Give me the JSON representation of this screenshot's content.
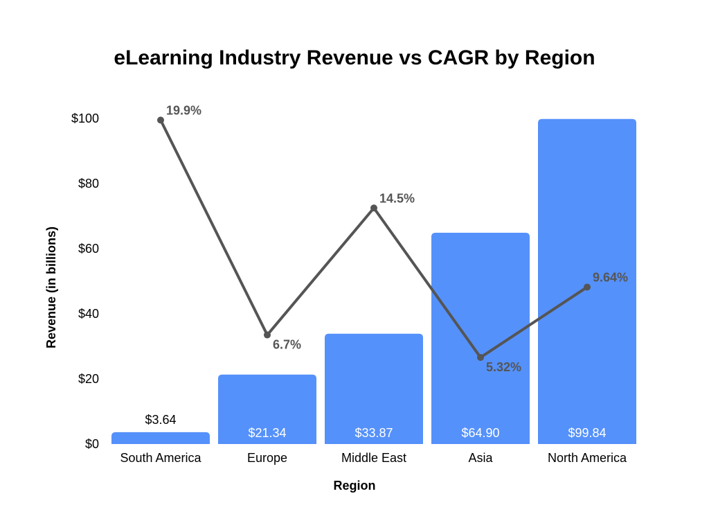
{
  "chart_data": {
    "type": "bar",
    "title": "eLearning Industry Revenue vs CAGR by Region",
    "xlabel": "Region",
    "ylabel": "Revenue (in billions)",
    "ylim": [
      0,
      100
    ],
    "yticks": [
      "$0",
      "$20",
      "$40",
      "$60",
      "$80",
      "$100"
    ],
    "ytick_values": [
      0,
      20,
      40,
      60,
      80,
      100
    ],
    "grid": false,
    "categories": [
      "South America",
      "Europe",
      "Middle East",
      "Asia",
      "North America"
    ],
    "series": [
      {
        "name": "Revenue",
        "type": "bar",
        "color": "#5591FA",
        "values": [
          3.64,
          21.34,
          33.87,
          64.9,
          99.84
        ],
        "labels": [
          "$3.64",
          "$21.34",
          "$33.87",
          "$64.90",
          "$99.84"
        ]
      },
      {
        "name": "CAGR",
        "type": "line",
        "color": "#555555",
        "values": [
          19.9,
          6.7,
          14.5,
          5.32,
          9.64
        ],
        "labels": [
          "19.9%",
          "6.7%",
          "14.5%",
          "5.32%",
          "9.64%"
        ],
        "ylim": [
          0,
          20
        ]
      }
    ]
  }
}
